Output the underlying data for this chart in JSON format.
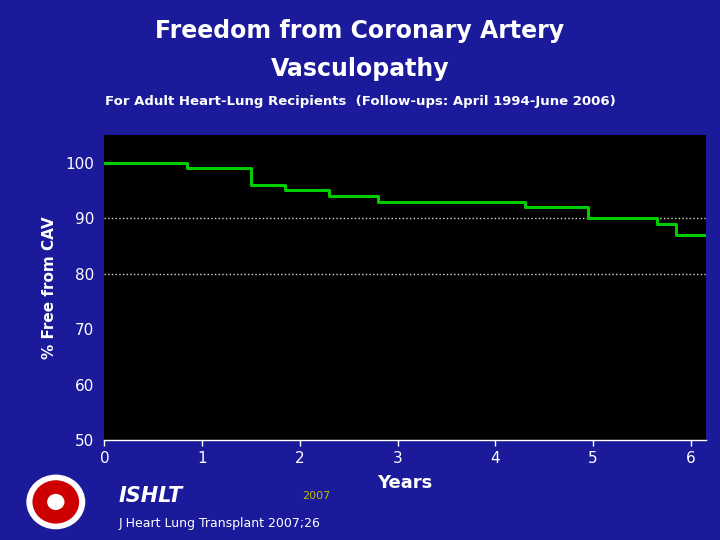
{
  "title_line1": "Freedom from Coronary Artery",
  "title_line2": "Vasculopathy",
  "subtitle": "For Adult Heart-Lung Recipients  (Follow-ups: April 1994-June 2006)",
  "xlabel": "Years",
  "ylabel": "% Free from CAV",
  "bg_color": "#1a1a9a",
  "plot_bg_color": "#000000",
  "title_color": "#ffffff",
  "subtitle_color": "#ffffff",
  "axis_label_color": "#ffffff",
  "tick_color": "#ffffff",
  "line_color": "#00cc00",
  "grid_color": "#ffffff",
  "footer_ishlt": "ISHLT",
  "footer_year": "2007",
  "footer_journal": "J Heart Lung Transplant 2007;26",
  "xlim": [
    0,
    6.15
  ],
  "ylim": [
    50,
    105
  ],
  "yticks": [
    50,
    60,
    70,
    80,
    90,
    100
  ],
  "xticks": [
    0,
    1,
    2,
    3,
    4,
    5,
    6
  ],
  "step_x": [
    0,
    0.85,
    1.5,
    1.85,
    2.3,
    2.8,
    3.2,
    4.3,
    4.95,
    5.65,
    5.85,
    6.15
  ],
  "step_y": [
    100,
    99,
    96,
    95,
    94,
    93,
    93,
    92,
    90,
    89,
    87,
    87
  ]
}
